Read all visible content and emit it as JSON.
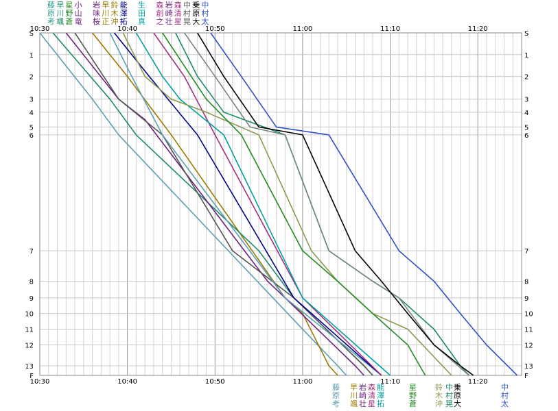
{
  "chart_data": {
    "type": "line",
    "title": "",
    "xlabel": "",
    "ylabel": "",
    "grid": true,
    "x_range": [
      "10:30",
      "11:25"
    ],
    "time_labels": [
      "10:30",
      "10:40",
      "10:50",
      "11:00",
      "11:10",
      "11:20"
    ],
    "checkpoints": [
      "S",
      "1",
      "2",
      "3",
      "4",
      "5",
      "6",
      "7",
      "8",
      "9",
      "10",
      "11",
      "12",
      "13",
      "F"
    ],
    "checkpoint_position": [
      0,
      2.5,
      5,
      7.6,
      9.1,
      10.8,
      11.7,
      25,
      28.5,
      30.4,
      32.2,
      34,
      35.8,
      38.2,
      39.3
    ],
    "start_label_rows": [
      [
        "藤",
        "早",
        "星",
        "小",
        "",
        "岩",
        "早",
        "鈴",
        "能",
        "",
        "生",
        "",
        "森",
        "岩",
        "森",
        "中",
        "乗",
        "中"
      ],
      [
        "原",
        "川",
        "野",
        "山",
        "",
        "味",
        "川",
        "木",
        "澤",
        "",
        "田",
        "",
        "創",
        "崎",
        "清",
        "村",
        "原",
        "村"
      ],
      [
        "考",
        "颯",
        "蒼",
        "竜",
        "",
        "桜",
        "正",
        "沖",
        "拓",
        "",
        "真",
        "",
        "之",
        "壮",
        "星",
        "晃",
        "大",
        "太"
      ]
    ],
    "finish_label_rows": [
      [
        "藤",
        "",
        "早",
        "岩",
        "森",
        "能",
        "",
        "",
        "星",
        "",
        "",
        "鈴",
        "中",
        "乗",
        "",
        "",
        "中"
      ],
      [
        "原",
        "",
        "川",
        "崎",
        "清",
        "澤",
        "",
        "",
        "野",
        "",
        "",
        "木",
        "村",
        "原",
        "",
        "",
        "村"
      ],
      [
        "考",
        "",
        "颯",
        "壮",
        "星",
        "拓",
        "",
        "",
        "蒼",
        "",
        "",
        "沖",
        "晃",
        "大",
        "",
        "",
        "太"
      ]
    ],
    "series": [
      {
        "color": "#5a9fb3",
        "points": [
          [
            "10:30:00",
            "S"
          ],
          [
            "10:36:00",
            "3"
          ],
          [
            "10:39:00",
            "6"
          ],
          [
            "11:00:00",
            "11"
          ],
          [
            "11:04:00",
            "13"
          ],
          [
            "11:05:00",
            "F"
          ]
        ]
      },
      {
        "color": "#9a7b00",
        "points": [
          [
            "10:36:00",
            "S"
          ],
          [
            "10:40:00",
            "2"
          ],
          [
            "10:45:00",
            "6"
          ],
          [
            "10:58:00",
            "9"
          ],
          [
            "11:00:00",
            "10"
          ],
          [
            "11:03:00",
            "13"
          ],
          [
            "11:04:00",
            "F"
          ]
        ]
      },
      {
        "color": "#1d8a6a",
        "points": [
          [
            "10:31:30",
            "S"
          ],
          [
            "10:38:00",
            "3"
          ],
          [
            "10:41:00",
            "6"
          ],
          [
            "10:55:00",
            "7"
          ],
          [
            "10:59:00",
            "9"
          ],
          [
            "11:07:00",
            "13"
          ],
          [
            "11:08:00",
            "F"
          ]
        ]
      },
      {
        "color": "#6a2080",
        "points": [
          [
            "10:33:00",
            "S"
          ],
          [
            "10:39:00",
            "3"
          ],
          [
            "10:42:00",
            "4.5"
          ],
          [
            "10:56:00",
            "8"
          ],
          [
            "10:58:00",
            "9"
          ],
          [
            "11:06:00",
            "13"
          ],
          [
            "11:07:00",
            "F"
          ]
        ]
      },
      {
        "color": "#555555",
        "points": [
          [
            "10:34:00",
            "S"
          ],
          [
            "10:39:00",
            "3"
          ],
          [
            "10:44:00",
            "6"
          ],
          [
            "10:52:00",
            "7"
          ],
          [
            "10:59:00",
            "9"
          ],
          [
            "11:07:00",
            "13"
          ],
          [
            "11:08:00",
            "F"
          ]
        ]
      },
      {
        "color": "#5a9fb3",
        "points": [
          [
            "10:38:00",
            "S"
          ],
          [
            "10:40:30",
            "2"
          ],
          [
            "10:44:00",
            "6"
          ],
          [
            "10:58:00",
            "9"
          ],
          [
            "11:09:00",
            "F"
          ]
        ]
      },
      {
        "color": "#000088",
        "points": [
          [
            "10:38:30",
            "S"
          ],
          [
            "10:42:30",
            "2"
          ],
          [
            "10:48:00",
            "6"
          ],
          [
            "10:59:00",
            "9"
          ],
          [
            "11:09:00",
            "F"
          ]
        ]
      },
      {
        "color": "#a03080",
        "points": [
          [
            "10:43:00",
            "S"
          ],
          [
            "10:46:30",
            "2"
          ],
          [
            "10:50:00",
            "6"
          ],
          [
            "11:00:00",
            "9"
          ],
          [
            "11:09:00",
            "F"
          ]
        ]
      },
      {
        "color": "#00a0a0",
        "points": [
          [
            "10:41:00",
            "S"
          ],
          [
            "10:44:00",
            "2"
          ],
          [
            "10:46:00",
            "3"
          ],
          [
            "10:51:00",
            "6"
          ],
          [
            "11:00:00",
            "9"
          ],
          [
            "11:10:00",
            "F"
          ]
        ]
      },
      {
        "color": "#8a9a50",
        "points": [
          [
            "10:39:30",
            "S"
          ],
          [
            "10:42:00",
            "2"
          ],
          [
            "10:45:00",
            "3"
          ],
          [
            "10:49:00",
            "4"
          ],
          [
            "10:55:00",
            "6"
          ],
          [
            "11:01:00",
            "7"
          ],
          [
            "11:04:00",
            "8"
          ],
          [
            "11:08:00",
            "10"
          ],
          [
            "11:12:00",
            "11"
          ],
          [
            "11:17:00",
            "F"
          ]
        ]
      },
      {
        "color": "#228b22",
        "points": [
          [
            "10:44:00",
            "S"
          ],
          [
            "10:49:00",
            "3"
          ],
          [
            "10:53:00",
            "6"
          ],
          [
            "11:00:00",
            "7"
          ],
          [
            "11:04:00",
            "8"
          ],
          [
            "11:08:00",
            "10"
          ],
          [
            "11:12:00",
            "12"
          ],
          [
            "11:14:00",
            "F"
          ]
        ]
      },
      {
        "color": "#1d8a6a",
        "points": [
          [
            "10:45:30",
            "S"
          ],
          [
            "10:48:00",
            "2"
          ],
          [
            "10:51:00",
            "4"
          ],
          [
            "10:58:00",
            "6"
          ],
          [
            "11:03:00",
            "7"
          ],
          [
            "11:08:00",
            "8"
          ],
          [
            "11:11:00",
            "9"
          ],
          [
            "11:15:00",
            "11"
          ],
          [
            "11:18:00",
            "13"
          ],
          [
            "11:19:00",
            "F"
          ]
        ]
      },
      {
        "color": "#778877",
        "points": [
          [
            "10:46:30",
            "S"
          ],
          [
            "10:50:00",
            "2"
          ],
          [
            "10:54:00",
            "5"
          ],
          [
            "10:58:00",
            "6"
          ],
          [
            "11:03:00",
            "7"
          ],
          [
            "11:08:00",
            "8"
          ],
          [
            "11:11:00",
            "9"
          ],
          [
            "11:15:00",
            "12"
          ],
          [
            "11:19:00",
            "F"
          ]
        ]
      },
      {
        "color": "#000000",
        "points": [
          [
            "10:48:00",
            "S"
          ],
          [
            "10:51:00",
            "2"
          ],
          [
            "10:55:00",
            "5"
          ],
          [
            "11:00:00",
            "6"
          ],
          [
            "11:06:00",
            "7"
          ],
          [
            "11:09:00",
            "8"
          ],
          [
            "11:12:00",
            "10"
          ],
          [
            "11:15:00",
            "12"
          ],
          [
            "11:18:00",
            "13"
          ],
          [
            "11:19:30",
            "F"
          ]
        ]
      },
      {
        "color": "#3050c8",
        "points": [
          [
            "10:49:30",
            "S"
          ],
          [
            "10:53:00",
            "2"
          ],
          [
            "10:57:00",
            "5"
          ],
          [
            "11:03:00",
            "6"
          ],
          [
            "11:11:00",
            "7"
          ],
          [
            "11:15:00",
            "8"
          ],
          [
            "11:18:00",
            "10"
          ],
          [
            "11:21:00",
            "12"
          ],
          [
            "11:24:30",
            "F"
          ]
        ]
      }
    ]
  }
}
